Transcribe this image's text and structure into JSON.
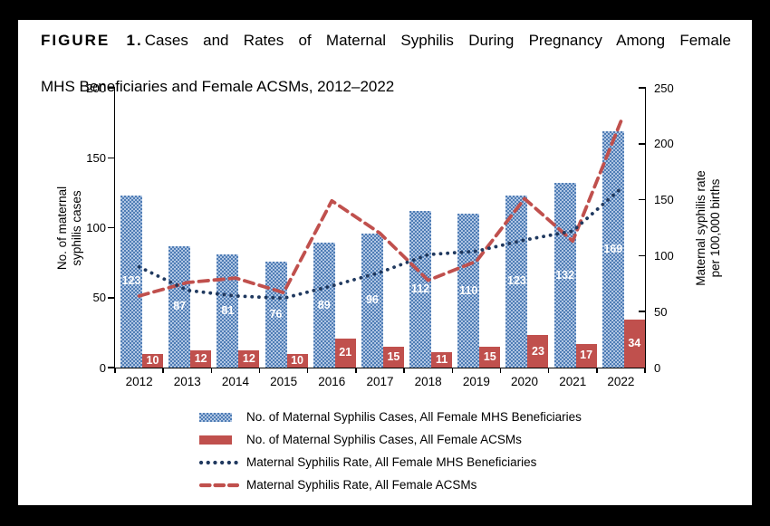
{
  "figure": {
    "label": "FIGURE 1.",
    "title_line1": "Cases and Rates of Maternal Syphilis During Pregnancy Among Female",
    "title_line2": "MHS Beneficiaries and Female ACSMs, 2012–2022"
  },
  "colors": {
    "mhs_bar_base": "#b7cbe7",
    "mhs_bar_dot": "#4f7db5",
    "acsm_bar": "#c0504d",
    "mhs_rate_line": "#20395f",
    "acsm_rate_line": "#c0504d",
    "axis": "#000000",
    "bar_value_text": "#ffffff"
  },
  "chart_data": {
    "type": "bar",
    "subtype": "grouped bars with two overlay lines (combo chart, dual axis)",
    "categories": [
      "2012",
      "2013",
      "2014",
      "2015",
      "2016",
      "2017",
      "2018",
      "2019",
      "2020",
      "2021",
      "2022"
    ],
    "series": [
      {
        "name": "No. of Maternal Syphilis Cases, All Female MHS Beneficiaries",
        "kind": "bar",
        "axis": "left",
        "style": "blue-pattern",
        "values": [
          123,
          87,
          81,
          76,
          89,
          96,
          112,
          110,
          123,
          132,
          169
        ]
      },
      {
        "name": "No. of Maternal Syphilis Cases, All Female ACSMs",
        "kind": "bar",
        "axis": "left",
        "style": "red-solid",
        "values": [
          10,
          12,
          12,
          10,
          21,
          15,
          11,
          15,
          23,
          17,
          34
        ]
      },
      {
        "name": "Maternal Syphilis Rate, All Female MHS Beneficiaries",
        "kind": "line",
        "axis": "right",
        "style": "navy-dotted",
        "values": [
          90,
          69,
          64,
          62,
          73,
          85,
          101,
          104,
          114,
          122,
          160
        ]
      },
      {
        "name": "Maternal Syphilis Rate, All Female ACSMs",
        "kind": "line",
        "axis": "right",
        "style": "red-dashed",
        "values": [
          64,
          76,
          80,
          67,
          149,
          120,
          78,
          95,
          151,
          113,
          220
        ]
      }
    ],
    "left_axis": {
      "label": "No. of maternal syphilis cases",
      "label_line1": "No. of maternal",
      "label_line2": "syphilis cases",
      "min": 0,
      "max": 200,
      "ticks": [
        0,
        50,
        100,
        150,
        200
      ]
    },
    "right_axis": {
      "label": "Maternal syphilis rate per 100,000 births",
      "label_line1": "Maternal syphilis rate",
      "label_line2": "per 100,000 births",
      "min": 0,
      "max": 250,
      "ticks": [
        0,
        50,
        100,
        150,
        200,
        250
      ]
    },
    "grid": "off",
    "legend_position": "bottom",
    "bar_value_labels": "inside, white bold"
  },
  "legend": {
    "items": [
      {
        "swatch": "blue-pattern",
        "label": "No. of Maternal Syphilis Cases, All Female MHS Beneficiaries"
      },
      {
        "swatch": "red-solid",
        "label": "No. of Maternal Syphilis Cases, All Female ACSMs"
      },
      {
        "swatch": "navy-dotted",
        "label": "Maternal Syphilis Rate, All Female MHS Beneficiaries"
      },
      {
        "swatch": "red-dashed",
        "label": "Maternal Syphilis Rate, All Female ACSMs"
      }
    ]
  }
}
